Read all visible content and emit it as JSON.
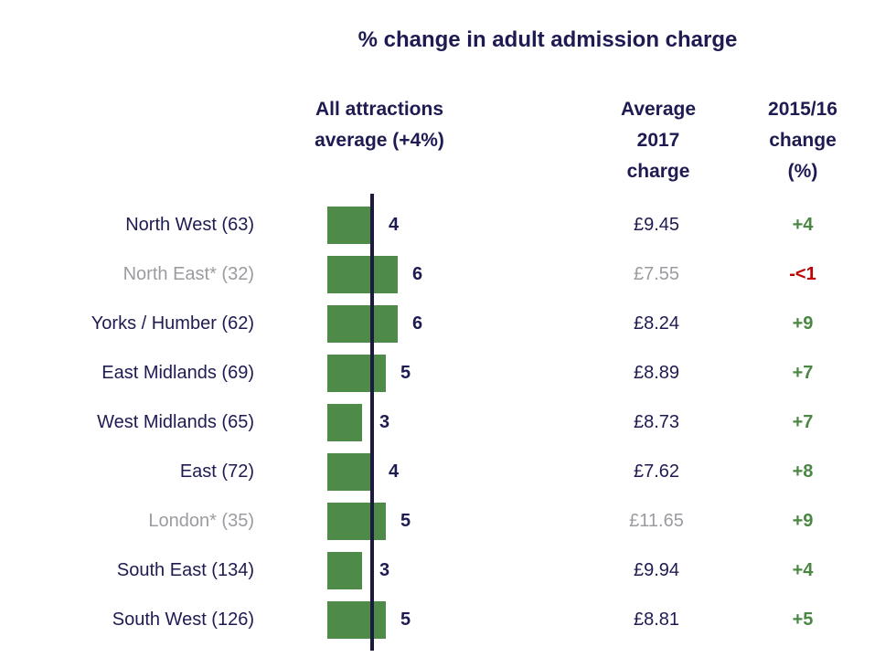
{
  "title": "% change in adult admission charge",
  "headers": {
    "bar": "All attractions\naverage (+4%)",
    "charge": "Average\n2017\ncharge",
    "change": "2015/16\nchange\n(%)"
  },
  "colors": {
    "navy_text": "#1e1b52",
    "bar_green": "#4e8b48",
    "change_green": "#4a8742",
    "red": "#c00000",
    "muted_grey": "#9b9ba1",
    "line_navy": "#1d1a42"
  },
  "chart_data": {
    "type": "bar",
    "orientation": "horizontal",
    "title": "% change in adult admission charge",
    "xlabel": "% change in adult admission charge",
    "x_range": [
      0,
      7
    ],
    "grid": false,
    "baseline": {
      "label": "All attractions average (+4%)",
      "value": 4
    },
    "categories": [
      "North West (63)",
      "North East* (32)",
      "Yorks / Humber (62)",
      "East Midlands (69)",
      "West Midlands (65)",
      "East (72)",
      "London* (35)",
      "South East (134)",
      "South West (126)"
    ],
    "values": [
      4,
      6,
      6,
      5,
      3,
      4,
      5,
      3,
      5
    ],
    "rows": [
      {
        "region": "North West (63)",
        "pct_change": 4,
        "avg_2017_charge": "£9.45",
        "change_2015_16": "+4",
        "muted": false,
        "change_color": "green"
      },
      {
        "region": "North East* (32)",
        "pct_change": 6,
        "avg_2017_charge": "£7.55",
        "change_2015_16": "-<1",
        "muted": true,
        "change_color": "red"
      },
      {
        "region": "Yorks / Humber (62)",
        "pct_change": 6,
        "avg_2017_charge": "£8.24",
        "change_2015_16": "+9",
        "muted": false,
        "change_color": "green"
      },
      {
        "region": "East Midlands (69)",
        "pct_change": 5,
        "avg_2017_charge": "£8.89",
        "change_2015_16": "+7",
        "muted": false,
        "change_color": "green"
      },
      {
        "region": "West Midlands (65)",
        "pct_change": 3,
        "avg_2017_charge": "£8.73",
        "change_2015_16": "+7",
        "muted": false,
        "change_color": "green"
      },
      {
        "region": "East (72)",
        "pct_change": 4,
        "avg_2017_charge": "£7.62",
        "change_2015_16": "+8",
        "muted": false,
        "change_color": "green"
      },
      {
        "region": "London* (35)",
        "pct_change": 5,
        "avg_2017_charge": "£11.65",
        "change_2015_16": "+9",
        "muted": true,
        "change_color": "green"
      },
      {
        "region": "South East (134)",
        "pct_change": 3,
        "avg_2017_charge": "£9.94",
        "change_2015_16": "+4",
        "muted": false,
        "change_color": "green"
      },
      {
        "region": "South West (126)",
        "pct_change": 5,
        "avg_2017_charge": "£8.81",
        "change_2015_16": "+5",
        "muted": false,
        "change_color": "green"
      }
    ]
  }
}
